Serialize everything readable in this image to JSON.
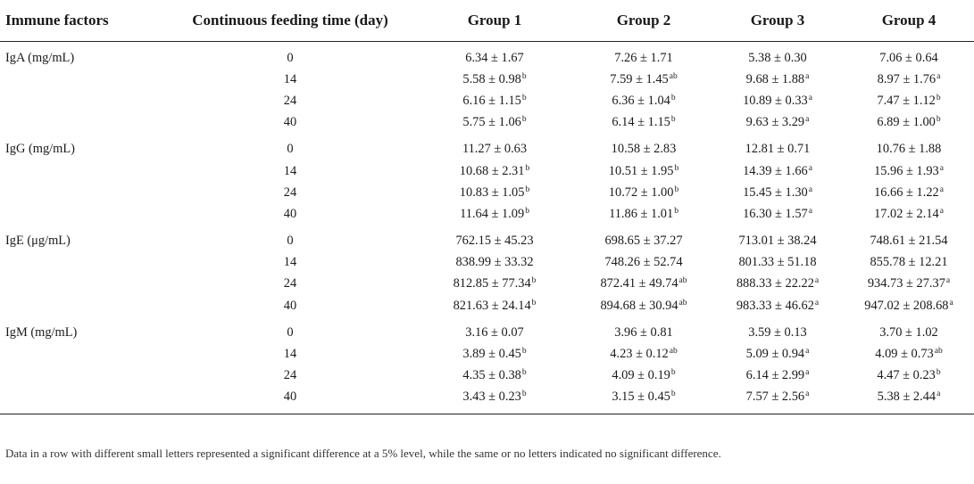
{
  "table": {
    "headers": [
      "Immune factors",
      "Continuous feeding time (day)",
      "Group 1",
      "Group 2",
      "Group 3",
      "Group 4"
    ],
    "groups": [
      {
        "factor": "IgA (mg/mL)",
        "rows": [
          {
            "day": "0",
            "cells": [
              [
                "6.34 ± 1.67",
                ""
              ],
              [
                "7.26 ± 1.71",
                ""
              ],
              [
                "5.38 ± 0.30",
                ""
              ],
              [
                "7.06 ± 0.64",
                ""
              ]
            ]
          },
          {
            "day": "14",
            "cells": [
              [
                "5.58 ± 0.98",
                "b"
              ],
              [
                "7.59 ± 1.45",
                "ab"
              ],
              [
                "9.68 ± 1.88",
                "a"
              ],
              [
                "8.97 ± 1.76",
                "a"
              ]
            ]
          },
          {
            "day": "24",
            "cells": [
              [
                "6.16 ± 1.15",
                "b"
              ],
              [
                "6.36 ± 1.04",
                "b"
              ],
              [
                "10.89 ± 0.33",
                "a"
              ],
              [
                "7.47 ± 1.12",
                "b"
              ]
            ]
          },
          {
            "day": "40",
            "cells": [
              [
                "5.75 ± 1.06",
                "b"
              ],
              [
                "6.14 ± 1.15",
                "b"
              ],
              [
                "9.63 ± 3.29",
                "a"
              ],
              [
                "6.89 ± 1.00",
                "b"
              ]
            ]
          }
        ]
      },
      {
        "factor": "IgG (mg/mL)",
        "rows": [
          {
            "day": "0",
            "cells": [
              [
                "11.27 ± 0.63",
                ""
              ],
              [
                "10.58 ± 2.83",
                ""
              ],
              [
                "12.81 ± 0.71",
                ""
              ],
              [
                "10.76 ± 1.88",
                ""
              ]
            ]
          },
          {
            "day": "14",
            "cells": [
              [
                "10.68 ± 2.31",
                "b"
              ],
              [
                "10.51 ± 1.95",
                "b"
              ],
              [
                "14.39 ± 1.66",
                "a"
              ],
              [
                "15.96 ± 1.93",
                "a"
              ]
            ]
          },
          {
            "day": "24",
            "cells": [
              [
                "10.83 ± 1.05",
                "b"
              ],
              [
                "10.72 ± 1.00",
                "b"
              ],
              [
                "15.45 ± 1.30",
                "a"
              ],
              [
                "16.66 ± 1.22",
                "a"
              ]
            ]
          },
          {
            "day": "40",
            "cells": [
              [
                "11.64 ± 1.09",
                "b"
              ],
              [
                "11.86 ± 1.01",
                "b"
              ],
              [
                "16.30 ± 1.57",
                "a"
              ],
              [
                "17.02 ± 2.14",
                "a"
              ]
            ]
          }
        ]
      },
      {
        "factor": "IgE (μg/mL)",
        "rows": [
          {
            "day": "0",
            "cells": [
              [
                "762.15 ± 45.23",
                ""
              ],
              [
                "698.65 ± 37.27",
                ""
              ],
              [
                "713.01 ± 38.24",
                ""
              ],
              [
                "748.61 ± 21.54",
                ""
              ]
            ]
          },
          {
            "day": "14",
            "cells": [
              [
                "838.99 ± 33.32",
                ""
              ],
              [
                "748.26 ± 52.74",
                ""
              ],
              [
                "801.33 ± 51.18",
                ""
              ],
              [
                "855.78 ± 12.21",
                ""
              ]
            ]
          },
          {
            "day": "24",
            "cells": [
              [
                "812.85 ± 77.34",
                "b"
              ],
              [
                "872.41 ± 49.74",
                "ab"
              ],
              [
                "888.33 ± 22.22",
                "a"
              ],
              [
                "934.73 ± 27.37",
                "a"
              ]
            ]
          },
          {
            "day": "40",
            "cells": [
              [
                "821.63 ± 24.14",
                "b"
              ],
              [
                "894.68 ± 30.94",
                "ab"
              ],
              [
                "983.33 ± 46.62",
                "a"
              ],
              [
                "947.02 ± 208.68",
                "a"
              ]
            ]
          }
        ]
      },
      {
        "factor": "IgM (mg/mL)",
        "rows": [
          {
            "day": "0",
            "cells": [
              [
                "3.16 ± 0.07",
                ""
              ],
              [
                "3.96 ± 0.81",
                ""
              ],
              [
                "3.59 ± 0.13",
                ""
              ],
              [
                "3.70 ± 1.02",
                ""
              ]
            ]
          },
          {
            "day": "14",
            "cells": [
              [
                "3.89 ± 0.45",
                "b"
              ],
              [
                "4.23 ± 0.12",
                "ab"
              ],
              [
                "5.09 ± 0.94",
                "a"
              ],
              [
                "4.09 ± 0.73",
                "ab"
              ]
            ]
          },
          {
            "day": "24",
            "cells": [
              [
                "4.35 ± 0.38",
                "b"
              ],
              [
                "4.09 ± 0.19",
                "b"
              ],
              [
                "6.14 ± 2.99",
                "a"
              ],
              [
                "4.47 ± 0.23",
                "b"
              ]
            ]
          },
          {
            "day": "40",
            "cells": [
              [
                "3.43 ± 0.23",
                "b"
              ],
              [
                "3.15 ± 0.45",
                "b"
              ],
              [
                "7.57 ± 2.56",
                "a"
              ],
              [
                "5.38 ± 2.44",
                "a"
              ]
            ]
          }
        ]
      }
    ]
  },
  "note": "Data in a row with different small letters represented a significant difference at a 5% level, while the same or no letters indicated no significant difference."
}
